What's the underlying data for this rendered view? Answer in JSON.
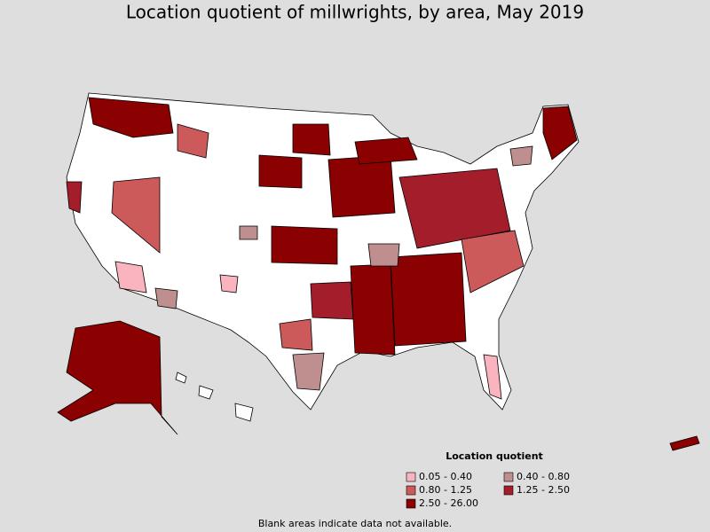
{
  "title": "Location quotient of millwrights, by area, May 2019",
  "legend": {
    "title": "Location quotient",
    "items": [
      {
        "label": "0.05 - 0.40",
        "color": "#f9b4bf"
      },
      {
        "label": "0.40 - 0.80",
        "color": "#bf8f8f"
      },
      {
        "label": "0.80 - 1.25",
        "color": "#cd5a5a"
      },
      {
        "label": "1.25 - 2.50",
        "color": "#a31d2a"
      },
      {
        "label": "2.50 - 26.00",
        "color": "#8b0000"
      }
    ]
  },
  "note": "Blank areas indicate data not available."
}
